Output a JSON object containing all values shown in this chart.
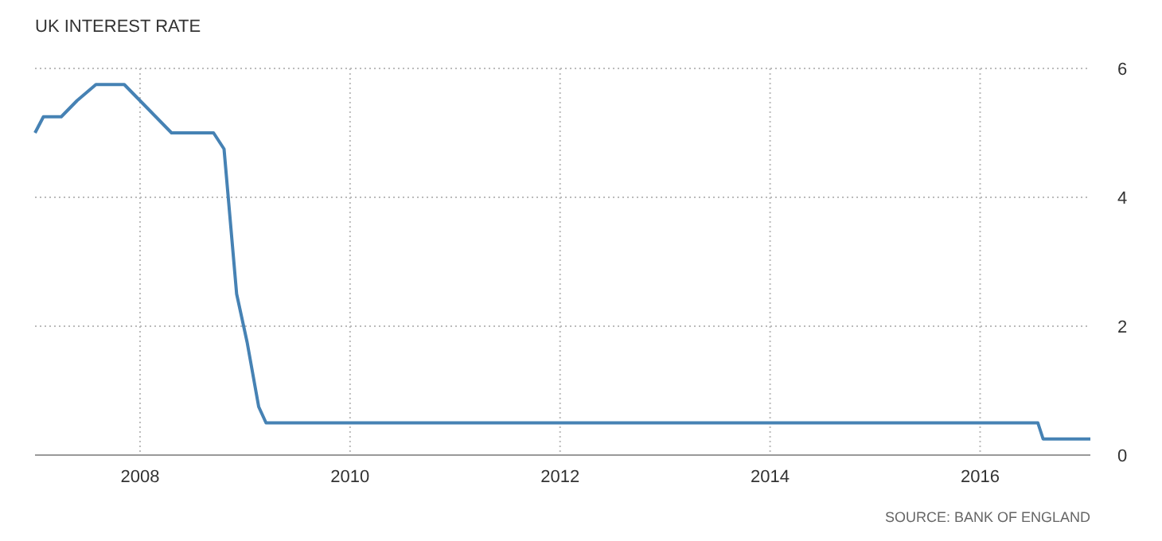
{
  "chart_data": {
    "type": "line",
    "title": "UK INTEREST RATE",
    "annotations": [
      "SOURCE: BANK OF ENGLAND"
    ],
    "x": [
      2007.0,
      2007.08,
      2007.25,
      2007.4,
      2007.58,
      2007.85,
      2008.0,
      2008.15,
      2008.3,
      2008.4,
      2008.7,
      2008.8,
      2008.92,
      2009.02,
      2009.13,
      2009.2,
      2016.55,
      2016.6,
      2017.05
    ],
    "series": [
      {
        "color": "#4682b4",
        "values": [
          5.0,
          5.25,
          5.25,
          5.5,
          5.75,
          5.75,
          5.5,
          5.25,
          5.0,
          5.0,
          5.0,
          4.75,
          2.5,
          1.75,
          0.75,
          0.5,
          0.5,
          0.25,
          0.25
        ]
      }
    ],
    "xlim": [
      2007,
      2017.05
    ],
    "xticks": [
      2008,
      2010,
      2012,
      2014,
      2016
    ],
    "ylim": [
      0,
      6
    ],
    "yticks": [
      0,
      2,
      4,
      6
    ],
    "grid": true,
    "line_style": "solid",
    "marker": "none"
  }
}
